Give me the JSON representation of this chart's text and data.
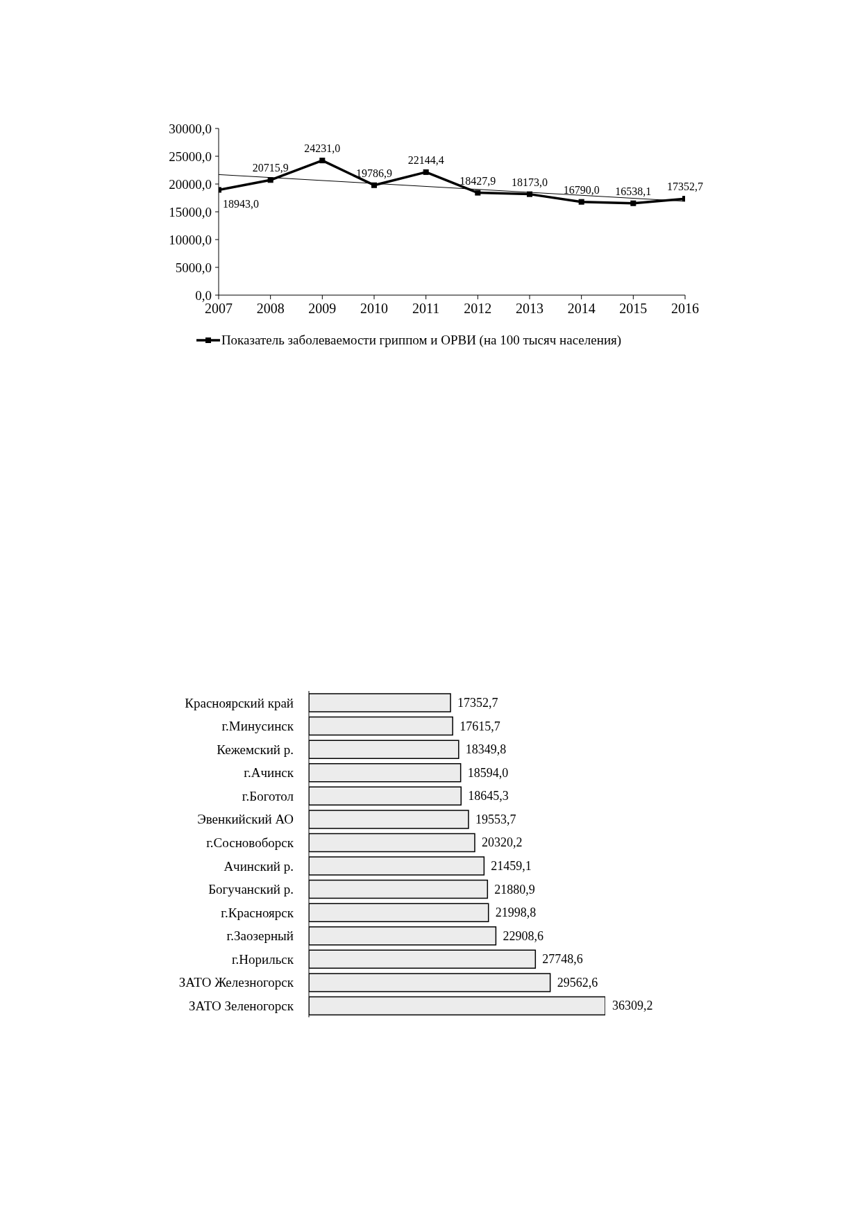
{
  "chart_data": [
    {
      "type": "line",
      "x": [
        2007,
        2008,
        2009,
        2010,
        2011,
        2012,
        2013,
        2014,
        2015,
        2016
      ],
      "xlim": [
        2007,
        2016
      ],
      "xticks": [
        2007,
        2008,
        2009,
        2010,
        2011,
        2012,
        2013,
        2014,
        2015,
        2016
      ],
      "ylim": [
        0,
        30000
      ],
      "yticks": [
        {
          "value": 0,
          "label": "0,0"
        },
        {
          "value": 5000,
          "label": "5000,0"
        },
        {
          "value": 10000,
          "label": "10000,0"
        },
        {
          "value": 15000,
          "label": "15000,0"
        },
        {
          "value": 20000,
          "label": "20000,0"
        },
        {
          "value": 25000,
          "label": "25000,0"
        },
        {
          "value": 30000,
          "label": "30000,0"
        }
      ],
      "marker": "square",
      "legend": "bottom",
      "series": [
        {
          "name": "Показатель заболеваемости гриппом и ОРВИ (на 100 тысяч населения)",
          "color": "#000000",
          "values": [
            18943.0,
            20715.9,
            24231.0,
            19786.9,
            22144.4,
            18427.9,
            18173.0,
            16790.0,
            16538.1,
            17352.7
          ],
          "value_labels": [
            "18943,0",
            "20715,9",
            "24231,0",
            "19786,9",
            "22144,4",
            "18427,9",
            "18173,0",
            "16790,0",
            "16538,1",
            "17352,7"
          ]
        },
        {
          "type": "line",
          "x": [
            2007,
            2016
          ],
          "values": [
            21700,
            16900
          ],
          "color": "#000000",
          "marker": "none"
        }
      ]
    },
    {
      "type": "bar",
      "orientation": "horizontal",
      "tick_labels": "y",
      "color": "#ececec",
      "categories": [
        "Красноярский край",
        "г.Минусинск",
        "Кежемский р.",
        "г.Ачинск",
        "г.Боготол",
        "Эвенкийский АО",
        "г.Сосновоборск",
        "Ачинский р.",
        "Богучанский р.",
        "г.Красноярск",
        "г.Заозерный",
        "г.Норильск",
        "ЗАТО Железногорск",
        "ЗАТО Зеленогорск"
      ],
      "values": [
        17352.7,
        17615.7,
        18349.8,
        18594.0,
        18645.3,
        19553.7,
        20320.2,
        21459.1,
        21880.9,
        21998.8,
        22908.6,
        27748.6,
        29562.6,
        36309.2
      ],
      "value_labels": [
        "17352,7",
        "17615,7",
        "18349,8",
        "18594,0",
        "18645,3",
        "19553,7",
        "20320,2",
        "21459,1",
        "21880,9",
        "21998,8",
        "22908,6",
        "27748,6",
        "29562,6",
        "36309,2"
      ]
    }
  ]
}
